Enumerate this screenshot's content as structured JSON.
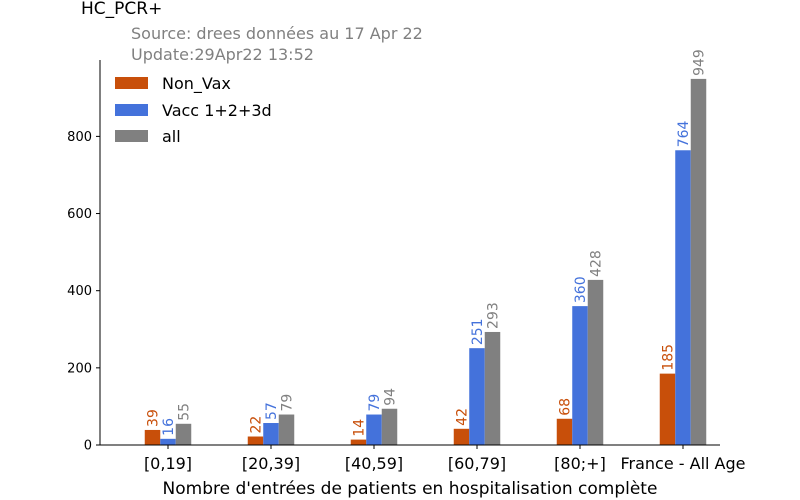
{
  "chart_data": {
    "type": "bar",
    "title": "HC_PCR+",
    "subtitle_lines": [
      "Source: drees données au 17 Apr 22",
      "Update:29Apr22 13:52"
    ],
    "xlabel": "Nombre d'entrées de patients en hospitalisation complète",
    "ylabel": "",
    "categories": [
      "[0,19]",
      "[20,39]",
      "[40,59]",
      "[60,79]",
      "[80;+]",
      "France - All Age"
    ],
    "series": [
      {
        "name": "Non_Vax",
        "color": "#c84f0a",
        "values": [
          39,
          22,
          14,
          42,
          68,
          185
        ]
      },
      {
        "name": "Vacc 1+2+3d",
        "color": "#4472db",
        "values": [
          16,
          57,
          79,
          251,
          360,
          764
        ]
      },
      {
        "name": "all",
        "color": "#808080",
        "values": [
          55,
          79,
          94,
          293,
          428,
          949
        ]
      }
    ],
    "ylim": [
      0,
      998
    ],
    "yticks": [
      0,
      200,
      400,
      600,
      800
    ],
    "legend_position": "top-left",
    "grid": false
  }
}
